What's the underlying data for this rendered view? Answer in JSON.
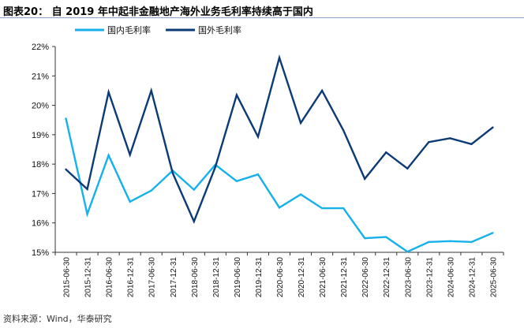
{
  "title": "图表20：  自 2019 年中起非金融地产海外业务毛利率持续高于国内",
  "source": "资料来源：Wind，华泰研究",
  "chart_data": {
    "type": "line",
    "title": "",
    "xlabel": "",
    "ylabel": "",
    "ylim": [
      15,
      22
    ],
    "yticks": [
      "15%",
      "16%",
      "17%",
      "18%",
      "19%",
      "20%",
      "21%",
      "22%"
    ],
    "legend_position": "top",
    "grid": false,
    "categories": [
      "2015-06-30",
      "2015-12-31",
      "2016-06-30",
      "2016-12-31",
      "2017-06-30",
      "2017-12-31",
      "2018-06-30",
      "2018-12-31",
      "2019-06-30",
      "2019-12-31",
      "2020-06-30",
      "2020-12-31",
      "2021-06-30",
      "2021-12-31",
      "2022-06-30",
      "2022-12-31",
      "2023-06-30",
      "2023-12-31",
      "2024-06-30",
      "2024-12-31",
      "2025-06-30"
    ],
    "series": [
      {
        "name": "国内毛利率",
        "color": "#16b1ec",
        "values": [
          19.55,
          16.3,
          18.3,
          16.72,
          17.1,
          17.78,
          17.13,
          17.98,
          17.42,
          17.65,
          16.52,
          16.97,
          16.5,
          16.5,
          15.48,
          15.52,
          15.02,
          15.35,
          15.38,
          15.35,
          15.66
        ]
      },
      {
        "name": "国外毛利率",
        "color": "#0b3a75",
        "values": [
          17.82,
          17.15,
          20.45,
          18.32,
          20.5,
          17.7,
          16.05,
          17.9,
          20.35,
          18.93,
          21.62,
          19.4,
          20.5,
          19.15,
          17.5,
          18.4,
          17.85,
          18.75,
          18.88,
          18.68,
          19.25
        ]
      }
    ]
  }
}
